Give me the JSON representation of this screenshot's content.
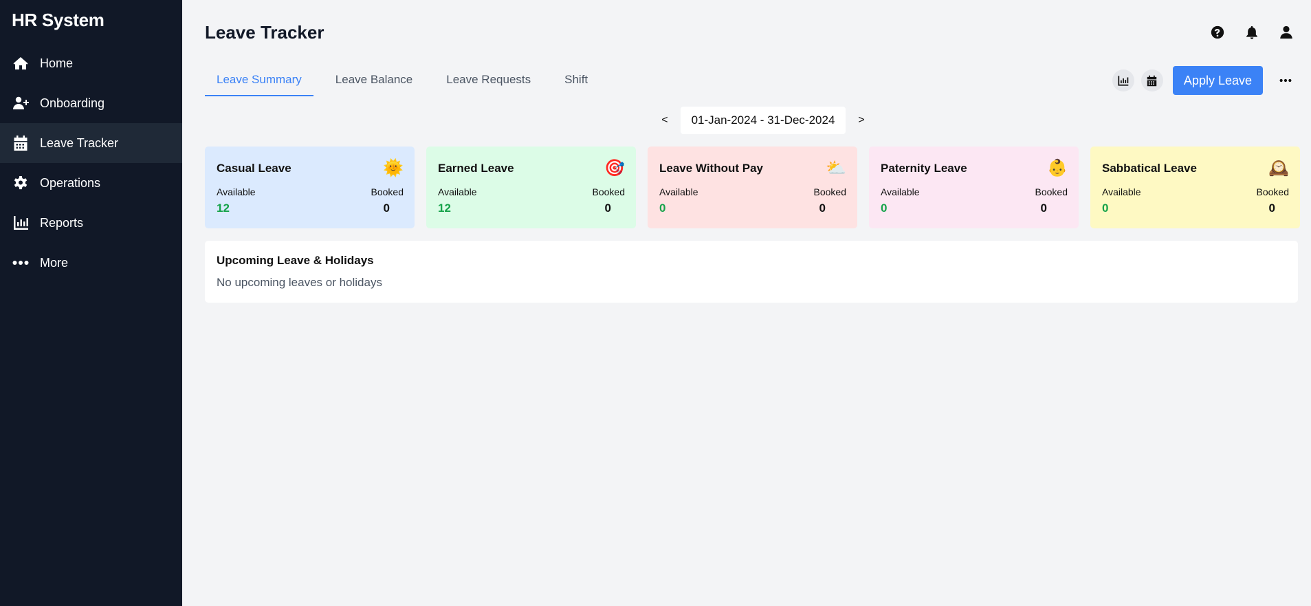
{
  "sidebar": {
    "brand": "HR System",
    "items": [
      {
        "label": "Home",
        "icon": "home-icon"
      },
      {
        "label": "Onboarding",
        "icon": "user-plus-icon"
      },
      {
        "label": "Leave Tracker",
        "icon": "calendar-icon"
      },
      {
        "label": "Operations",
        "icon": "gear-icon"
      },
      {
        "label": "Reports",
        "icon": "chart-icon"
      },
      {
        "label": "More",
        "icon": "ellipsis-icon"
      }
    ],
    "active": "Leave Tracker"
  },
  "header": {
    "title": "Leave Tracker",
    "icons": [
      "help-icon",
      "bell-icon",
      "user-icon"
    ]
  },
  "tabs": [
    {
      "label": "Leave Summary",
      "active": true
    },
    {
      "label": "Leave Balance",
      "active": false
    },
    {
      "label": "Leave Requests",
      "active": false
    },
    {
      "label": "Shift",
      "active": false
    }
  ],
  "actions": {
    "apply_label": "Apply Leave",
    "icons": [
      "chart-icon",
      "calendar-icon",
      "ellipsis-icon"
    ]
  },
  "range": {
    "prev": "<",
    "next": ">",
    "label": "01-Jan-2024 - 31-Dec-2024"
  },
  "cards": [
    {
      "title": "Casual Leave",
      "emoji": "🌞",
      "available_label": "Available",
      "booked_label": "Booked",
      "available": "12",
      "booked": "0",
      "bg": "#dbeafe"
    },
    {
      "title": "Earned Leave",
      "emoji": "🎯",
      "available_label": "Available",
      "booked_label": "Booked",
      "available": "12",
      "booked": "0",
      "bg": "#dcfce7"
    },
    {
      "title": "Leave Without Pay",
      "emoji": "⛅",
      "available_label": "Available",
      "booked_label": "Booked",
      "available": "0",
      "booked": "0",
      "bg": "#fee2e2"
    },
    {
      "title": "Paternity Leave",
      "emoji": "👶",
      "available_label": "Available",
      "booked_label": "Booked",
      "available": "0",
      "booked": "0",
      "bg": "#fce7f3"
    },
    {
      "title": "Sabbatical Leave",
      "emoji": "🕰️",
      "available_label": "Available",
      "booked_label": "Booked",
      "available": "0",
      "booked": "0",
      "bg": "#fef9c3"
    }
  ],
  "upcoming": {
    "title": "Upcoming Leave & Holidays",
    "empty": "No upcoming leaves or holidays"
  },
  "colors": {
    "sidebar_bg": "#111827",
    "accent": "#3b82f6",
    "available_green": "#16a34a"
  }
}
